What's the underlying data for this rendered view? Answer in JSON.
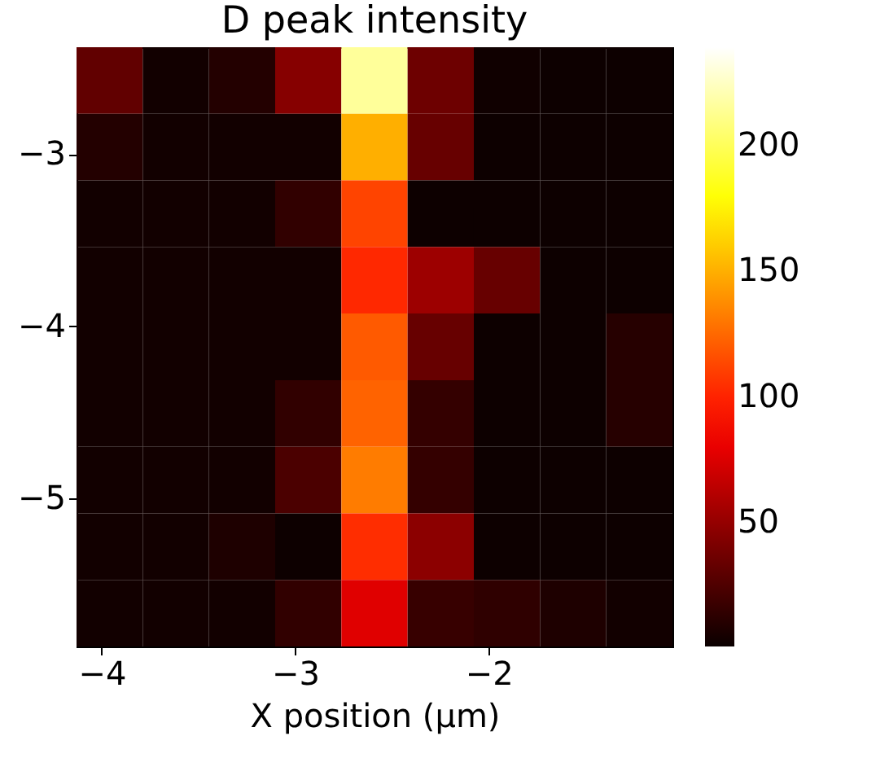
{
  "chart_data": {
    "type": "heatmap",
    "title": "D peak intensity",
    "xlabel": "X position (μm)",
    "xlim": [
      -4.13,
      -1.05
    ],
    "ylim": [
      -5.86,
      -2.38
    ],
    "xticks": [
      {
        "value": -4,
        "label": "−4"
      },
      {
        "value": -3,
        "label": "−3"
      },
      {
        "value": -2,
        "label": "−2"
      }
    ],
    "yticks": [
      {
        "value": -3,
        "label": "−3"
      },
      {
        "value": -4,
        "label": "−4"
      },
      {
        "value": -5,
        "label": "−5"
      }
    ],
    "cells": [
      [
        32,
        4,
        10,
        45,
        215,
        36,
        3,
        2,
        2
      ],
      [
        10,
        4,
        4,
        4,
        150,
        34,
        2,
        2,
        2
      ],
      [
        4,
        4,
        4,
        15,
        112,
        2,
        2,
        2,
        2
      ],
      [
        4,
        4,
        4,
        4,
        102,
        53,
        34,
        2,
        2
      ],
      [
        4,
        4,
        4,
        4,
        120,
        34,
        2,
        2,
        11
      ],
      [
        4,
        4,
        4,
        15,
        123,
        16,
        2,
        2,
        11
      ],
      [
        4,
        4,
        4,
        24,
        132,
        16,
        2,
        2,
        2
      ],
      [
        4,
        4,
        8,
        2,
        104,
        47,
        2,
        2,
        2
      ],
      [
        4,
        4,
        4,
        15,
        77,
        17,
        14,
        8,
        4
      ]
    ],
    "clim": [
      1,
      239
    ],
    "cticks": [
      50,
      100,
      150,
      200
    ]
  }
}
